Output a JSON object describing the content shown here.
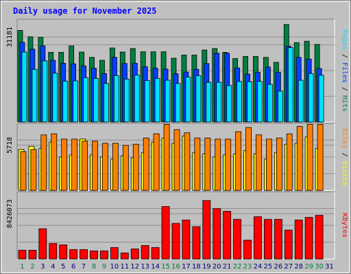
{
  "chart_data": {
    "type": "bar",
    "title": "Daily usage for November 2025",
    "categories": [
      "1",
      "2",
      "3",
      "4",
      "5",
      "6",
      "7",
      "8",
      "9",
      "10",
      "11",
      "12",
      "13",
      "14",
      "15",
      "16",
      "17",
      "18",
      "19",
      "20",
      "21",
      "22",
      "23",
      "24",
      "25",
      "26",
      "27",
      "28",
      "29",
      "30",
      "31"
    ],
    "weekend_categories": [
      "1",
      "2",
      "8",
      "9",
      "15",
      "16",
      "22",
      "23",
      "29",
      "30"
    ],
    "colors": {
      "hits": "#008040",
      "files": "#0040ff",
      "pages": "#00e0ff",
      "visits": "#ffff00",
      "sites": "#ff8000",
      "kbytes": "#ff0000",
      "background": "#c0c0c0",
      "title": "#0000ff",
      "weekend_label": "#008040",
      "weekday_label": "#000080"
    },
    "panels": [
      {
        "ytick_label": "31181",
        "ymax": 35000,
        "series": [
          {
            "name": "Hits",
            "color": "#008040",
            "values": [
              31181,
              29000,
              28800,
              23700,
              23700,
              25900,
              23800,
              22000,
              21000,
              25200,
              23800,
              25000,
              23900,
              23900,
              23900,
              21700,
              22800,
              22800,
              24500,
              25000,
              23700,
              21600,
              22300,
              22300,
              22000,
              20300,
              33200,
              27000,
              27500,
              26400,
              null
            ]
          },
          {
            "name": "Files",
            "color": "#0040ff",
            "values": [
              27100,
              24800,
              25900,
              21000,
              20000,
              19800,
              19100,
              18300,
              16500,
              22000,
              19900,
              20000,
              18800,
              18300,
              18000,
              16400,
              17000,
              17900,
              19900,
              23400,
              23400,
              18400,
              16300,
              16900,
              18700,
              16900,
              25800,
              22000,
              21400,
              18200,
              null
            ]
          },
          {
            "name": "Pages",
            "color": "#00e0ff",
            "values": [
              23800,
              17900,
              20800,
              16600,
              13900,
              14000,
              15100,
              14800,
              13100,
              15800,
              14600,
              16000,
              14100,
              14800,
              14200,
              13100,
              15300,
              15800,
              13500,
              13500,
              12400,
              13800,
              13700,
              13800,
              12800,
              10500,
              25300,
              14200,
              16500,
              15900,
              null
            ]
          }
        ]
      },
      {
        "ytick_label": "5718",
        "ymax": 6400,
        "series": [
          {
            "name": "Visits",
            "color": "#ffff00",
            "values": [
              3900,
              4200,
              4000,
              4600,
              3200,
              3400,
              4900,
              3400,
              3200,
              3000,
              3300,
              3100,
              3600,
              4600,
              5000,
              4500,
              5200,
              3600,
              3500,
              3200,
              3400,
              3500,
              3800,
              3500,
              3000,
              3600,
              4400,
              4500,
              5100,
              4000,
              null
            ]
          },
          {
            "name": "Sites",
            "color": "#ff8000",
            "values": [
              3700,
              3900,
              5300,
              5400,
              4900,
              4900,
              4700,
              4700,
              4500,
              4500,
              4300,
              4400,
              5000,
              5400,
              6300,
              5800,
              5500,
              5000,
              5000,
              4900,
              4900,
              5600,
              6000,
              5300,
              4900,
              5000,
              5400,
              6100,
              6300,
              6300,
              null
            ]
          }
        ]
      },
      {
        "ytick_label": "8426073",
        "ymax": 10000000,
        "series": [
          {
            "name": "KBytes",
            "color": "#ff0000",
            "values": [
              1300000,
              1300000,
              4500000,
              2300000,
              2100000,
              1400000,
              1400000,
              1200000,
              1200000,
              1700000,
              900000,
              1500000,
              2000000,
              1700000,
              7800000,
              5300000,
              5800000,
              4800000,
              8700000,
              7500000,
              7100000,
              5900000,
              2800000,
              6300000,
              5900000,
              5900000,
              4300000,
              5800000,
              6200000,
              6500000,
              null
            ]
          }
        ]
      }
    ],
    "xlabel": "",
    "ylabel": "",
    "grid": true,
    "legend": "right-side vertical labels per panel"
  }
}
